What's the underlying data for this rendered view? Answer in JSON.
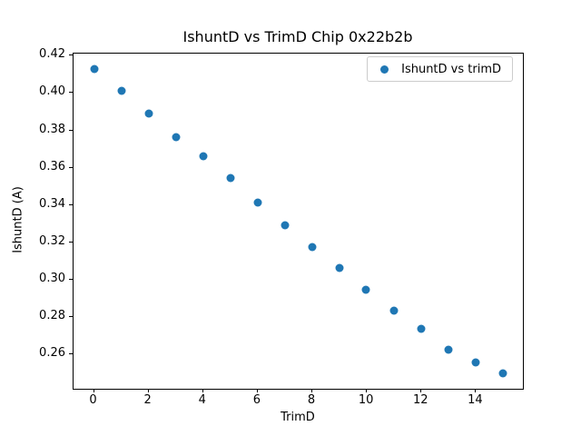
{
  "figure": {
    "title": "IshuntD vs TrimD Chip 0x22b2b",
    "background_color": "#ffffff"
  },
  "chart_data": {
    "type": "scatter",
    "title": "IshuntD vs TrimD Chip 0x22b2b",
    "xlabel": "TrimD",
    "ylabel": "IshuntD (A)",
    "legend": [
      "IshuntD vs trimD"
    ],
    "legend_position": "upper right",
    "marker_color": "#1f77b4",
    "marker_shape": "circle",
    "grid": false,
    "x": [
      0,
      1,
      2,
      3,
      4,
      5,
      6,
      7,
      8,
      9,
      10,
      11,
      12,
      13,
      14,
      15
    ],
    "y": [
      0.413,
      0.401,
      0.389,
      0.376,
      0.366,
      0.354,
      0.341,
      0.329,
      0.317,
      0.306,
      0.294,
      0.283,
      0.273,
      0.262,
      0.255,
      0.249
    ],
    "xlim": [
      -0.75,
      15.75
    ],
    "ylim": [
      0.2408,
      0.4212
    ],
    "xticks": [
      0,
      2,
      4,
      6,
      8,
      10,
      12,
      14
    ],
    "xtick_labels": [
      "0",
      "2",
      "4",
      "6",
      "8",
      "10",
      "12",
      "14"
    ],
    "yticks": [
      0.26,
      0.28,
      0.3,
      0.32,
      0.34,
      0.36,
      0.38,
      0.4,
      0.42
    ],
    "ytick_labels": [
      "0.26",
      "0.28",
      "0.30",
      "0.32",
      "0.34",
      "0.36",
      "0.38",
      "0.40",
      "0.42"
    ]
  }
}
